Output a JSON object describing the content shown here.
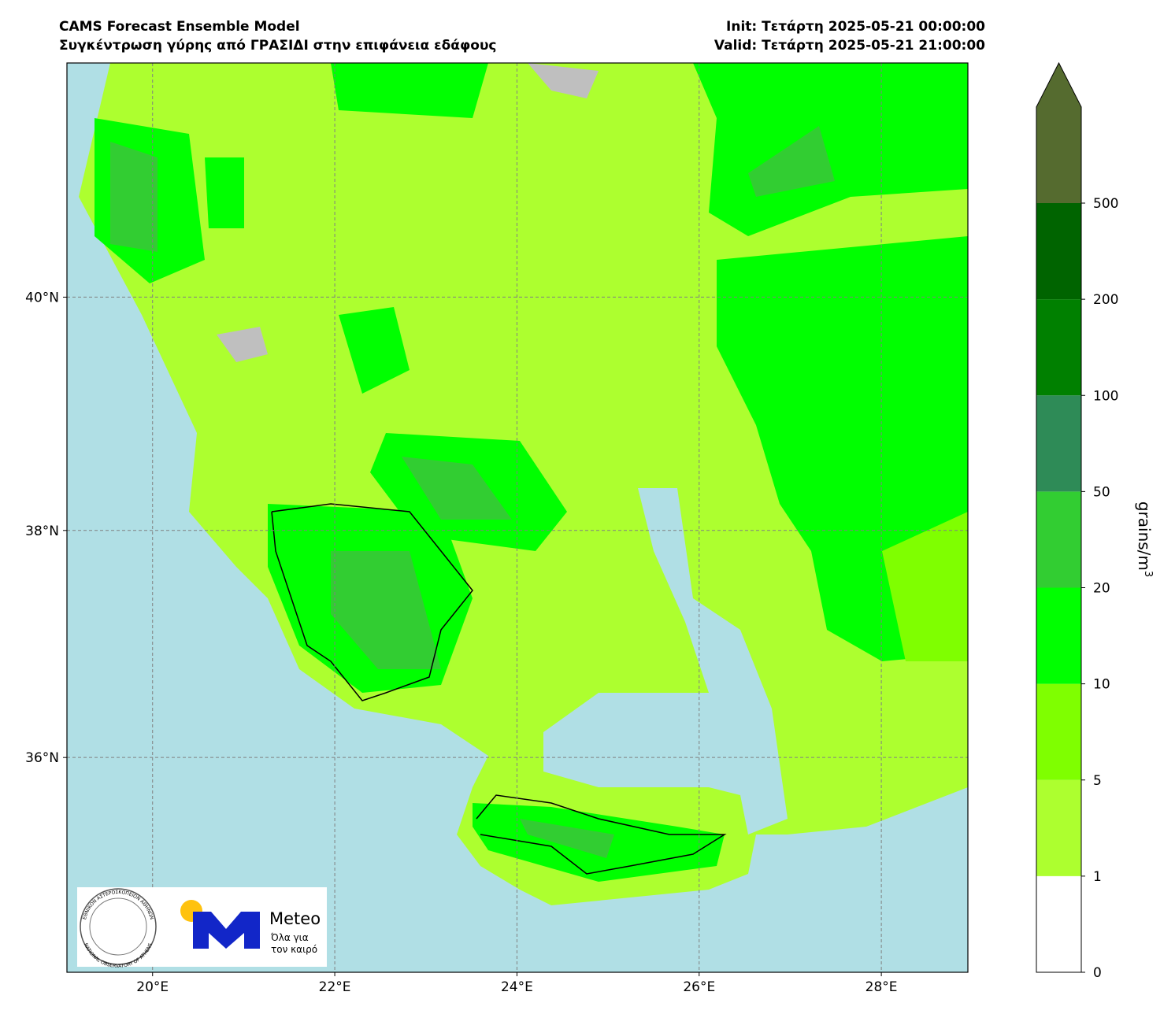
{
  "header": {
    "left": [
      "CAMS Forecast Ensemble Model",
      "Συγκέντρωση γύρης από ΓΡΑΣΙΔΙ στην επιφάνεια εδάφους"
    ],
    "right": [
      "Init: Τετάρτη 2025-05-21 00:00:00",
      "Valid: Τετάρτη 2025-05-21 21:00:00"
    ]
  },
  "map": {
    "projection": "mercator",
    "xlim": [
      19.06,
      28.95
    ],
    "ylim": [
      34.06,
      41.95
    ],
    "grid": true,
    "xticks": [
      {
        "value": 20,
        "label": "20°E"
      },
      {
        "value": 22,
        "label": "22°E"
      },
      {
        "value": 24,
        "label": "24°E"
      },
      {
        "value": 26,
        "label": "26°E"
      },
      {
        "value": 28,
        "label": "28°E"
      }
    ],
    "yticks": [
      {
        "value": 36,
        "label": "36°N"
      },
      {
        "value": 38,
        "label": "38°N"
      },
      {
        "value": 40,
        "label": "40°N"
      }
    ]
  },
  "colorbar": {
    "levels": [
      0,
      1,
      5,
      10,
      20,
      50,
      100,
      200,
      500
    ],
    "colors": [
      "#ffffff",
      "#adff2f",
      "#7fff00",
      "#00ff00",
      "#32cd32",
      "#2e8b57",
      "#008000",
      "#006400",
      "#556b2f"
    ],
    "label": "grains/m",
    "label_sup": "3"
  },
  "logos": {
    "meteo": "Meteo",
    "meteo_tagline": [
      "Όλα για",
      "τον καιρό"
    ],
    "observatory": [
      "ΕΘΝΙΚΟΝ ΑΣΤΕΡΟΣΚΟΠΕΙΟΝ ΑΘΗΝΩΝ",
      "NATIONAL OBSERVATORY OF ATHENS"
    ]
  }
}
